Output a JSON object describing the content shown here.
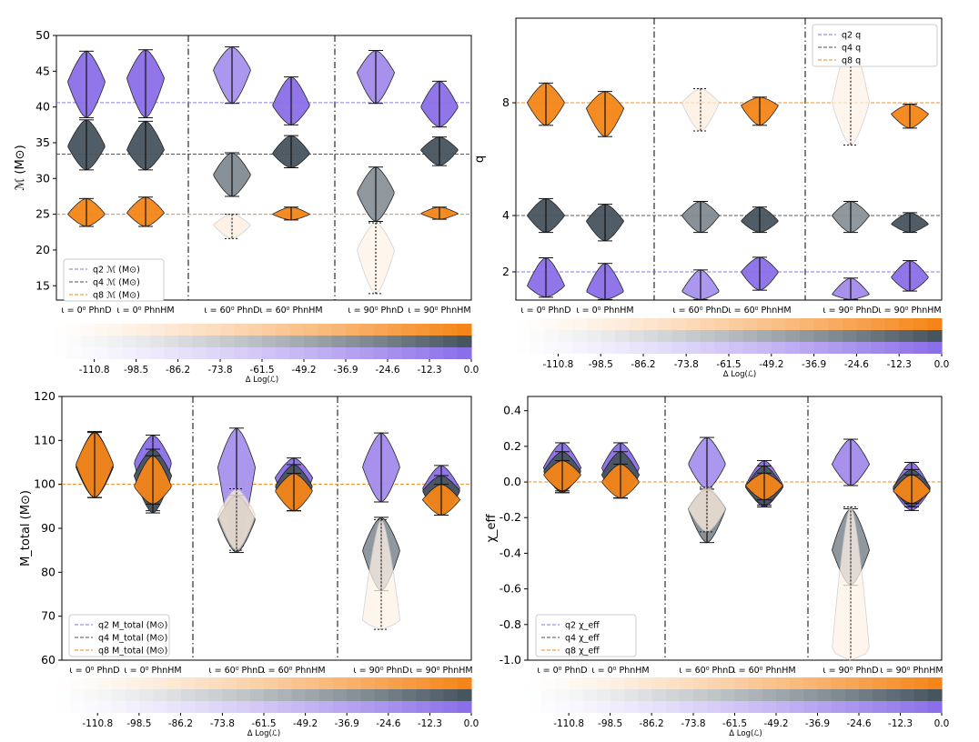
{
  "colors": {
    "q2": "#8b6fe8",
    "q4": "#47555f",
    "q8": "#f58518"
  },
  "chart_data": [
    {
      "type": "violin",
      "quantity": "chirp_mass",
      "ylabel": "ℳ (M⊙)",
      "ylim": [
        13,
        50
      ],
      "yticks": [
        15,
        20,
        25,
        30,
        35,
        40,
        45,
        50
      ],
      "ytick_labels": [
        "15",
        "20",
        "25",
        "30",
        "35",
        "40",
        "45",
        "50"
      ],
      "categories": [
        "ι = 0⁰ PhnD",
        "ι = 0⁰ PhnHM",
        "ι = 60⁰ PhnD",
        "ι = 60⁰ PhnHM",
        "ι = 90⁰ PhnD",
        "ι = 90⁰ PhnHM"
      ],
      "legend": [
        "q2 ℳ (M⊙)",
        "q4 ℳ (M⊙)",
        "q8 ℳ (M⊙)"
      ],
      "legend_position": "lower-left",
      "reference_lines": [
        40.6,
        33.4,
        25.0
      ],
      "series": [
        {
          "name": "q2",
          "delta_logL": [
            0,
            0,
            -30,
            0,
            -25,
            0
          ],
          "ranges": [
            [
              38.5,
              47.8
            ],
            [
              38.5,
              48.0
            ],
            [
              40.5,
              48.4
            ],
            [
              37.5,
              44.2
            ],
            [
              40.5,
              47.9
            ],
            [
              37.2,
              43.6
            ]
          ],
          "peaks": [
            43.5,
            44.0,
            45.2,
            40.2,
            44.8,
            40.0
          ]
        },
        {
          "name": "q4",
          "delta_logL": [
            0,
            0,
            -40,
            0,
            -45,
            0
          ],
          "ranges": [
            [
              31.2,
              38.2
            ],
            [
              31.2,
              38.0
            ],
            [
              27.5,
              33.6
            ],
            [
              31.5,
              36.0
            ],
            [
              24.0,
              31.6
            ],
            [
              31.8,
              35.8
            ]
          ],
          "peaks": [
            34.5,
            34.0,
            30.5,
            33.5,
            28.0,
            34.0
          ]
        },
        {
          "name": "q8",
          "delta_logL": [
            0,
            0,
            -105,
            0,
            -110,
            0
          ],
          "ranges": [
            [
              23.3,
              27.2
            ],
            [
              23.3,
              27.4
            ],
            [
              21.6,
              25.0
            ],
            [
              24.2,
              26.0
            ],
            [
              13.9,
              23.8
            ],
            [
              24.3,
              26.0
            ]
          ],
          "peaks": [
            25.0,
            25.2,
            23.5,
            25.0,
            20.0,
            25.1
          ]
        }
      ]
    },
    {
      "type": "violin",
      "quantity": "mass_ratio",
      "ylabel": "q",
      "ylim": [
        1,
        11
      ],
      "yticks": [
        2,
        4,
        8
      ],
      "ytick_labels": [
        "2",
        "4",
        "8"
      ],
      "categories": [
        "ι = 0⁰ PhnD",
        "ι = 0⁰ PhnHM",
        "ι = 60⁰ PhnD",
        "ι = 60⁰ PhnHM",
        "ι = 90⁰ PhnD",
        "ι = 90⁰ PhnHM"
      ],
      "legend": [
        "q2 q",
        "q4 q",
        "q8 q"
      ],
      "legend_position": "upper-right",
      "reference_lines": [
        2,
        4,
        8
      ],
      "series": [
        {
          "name": "q2",
          "delta_logL": [
            0,
            0,
            -30,
            0,
            -25,
            0
          ],
          "ranges": [
            [
              1.1,
              2.5
            ],
            [
              1.02,
              2.3
            ],
            [
              1.02,
              2.07
            ],
            [
              1.35,
              2.52
            ],
            [
              1.02,
              1.78
            ],
            [
              1.32,
              2.4
            ]
          ],
          "peaks": [
            1.5,
            1.3,
            1.3,
            2.0,
            1.2,
            1.8
          ]
        },
        {
          "name": "q4",
          "delta_logL": [
            0,
            0,
            -40,
            0,
            -45,
            0
          ],
          "ranges": [
            [
              3.4,
              4.6
            ],
            [
              3.1,
              4.4
            ],
            [
              3.4,
              4.5
            ],
            [
              3.4,
              4.3
            ],
            [
              3.4,
              4.5
            ],
            [
              3.4,
              4.1
            ]
          ],
          "peaks": [
            4.0,
            3.8,
            4.0,
            3.8,
            4.0,
            3.7
          ]
        },
        {
          "name": "q8",
          "delta_logL": [
            0,
            0,
            -105,
            0,
            -110,
            0
          ],
          "ranges": [
            [
              7.2,
              8.7
            ],
            [
              6.8,
              8.4
            ],
            [
              7.0,
              8.5
            ],
            [
              7.2,
              8.2
            ],
            [
              6.5,
              10.2
            ],
            [
              7.1,
              7.95
            ]
          ],
          "peaks": [
            8.0,
            7.8,
            8.0,
            7.9,
            8.0,
            7.6
          ]
        }
      ]
    },
    {
      "type": "violin",
      "quantity": "total_mass",
      "ylabel": "M_total (M⊙)",
      "ylim": [
        60,
        120
      ],
      "yticks": [
        60,
        70,
        80,
        90,
        100,
        110,
        120
      ],
      "ytick_labels": [
        "60",
        "70",
        "80",
        "90",
        "100",
        "110",
        "120"
      ],
      "categories": [
        "ι = 0⁰ PhnD",
        "ι = 0⁰ PhnHM",
        "ι = 60⁰ PhnD",
        "ι = 60⁰ PhnHM",
        "ι = 90⁰ PhnD",
        "ι = 90⁰ PhnHM"
      ],
      "legend": [
        "q2 M_total (M⊙)",
        "q4 M_total (M⊙)",
        "q8 M_total (M⊙)"
      ],
      "legend_position": "lower-left",
      "reference_lines": [
        100
      ],
      "series": [
        {
          "name": "q2",
          "delta_logL": [
            0,
            0,
            -30,
            0,
            -25,
            0
          ],
          "ranges": [
            [
              97.0,
              112.0
            ],
            [
              94.0,
              111.2
            ],
            [
              86.0,
              112.8
            ],
            [
              94.0,
              106.0
            ],
            [
              96.0,
              111.7
            ],
            [
              93.0,
              104.3
            ]
          ],
          "peaks": [
            104.0,
            105.0,
            104.0,
            101.5,
            104.0,
            99.0
          ]
        },
        {
          "name": "q4",
          "delta_logL": [
            0,
            0,
            -40,
            0,
            -45,
            0
          ],
          "ranges": [
            [
              97.0,
              112.0
            ],
            [
              93.5,
              108.0
            ],
            [
              84.5,
              97.5
            ],
            [
              94.0,
              104.5
            ],
            [
              75.8,
              92.5
            ],
            [
              93.0,
              102.0
            ]
          ],
          "peaks": [
            104.0,
            102.0,
            92.0,
            99.5,
            85.0,
            98.5
          ]
        },
        {
          "name": "q8",
          "delta_logL": [
            0,
            0,
            -105,
            0,
            -110,
            0
          ],
          "ranges": [
            [
              97.0,
              111.8
            ],
            [
              95.5,
              106.5
            ],
            [
              85.0,
              99.0
            ],
            [
              94.0,
              102.5
            ],
            [
              67.0,
              92.0
            ],
            [
              93.0,
              100.0
            ]
          ],
          "peaks": [
            104.5,
            99.5,
            93.0,
            98.5,
            69.0,
            96.5
          ]
        }
      ]
    },
    {
      "type": "violin",
      "quantity": "effective_spin",
      "ylabel": "χ_eff",
      "ylim": [
        -1.0,
        0.48
      ],
      "yticks": [
        -1.0,
        -0.8,
        -0.6,
        -0.4,
        -0.2,
        0.0,
        0.2,
        0.4
      ],
      "ytick_labels": [
        "-1.0",
        "-0.8",
        "-0.6",
        "-0.4",
        "-0.2",
        "0.0",
        "0.2",
        "0.4"
      ],
      "categories": [
        "ι = 0⁰ PhnD",
        "ι = 0⁰ PhnHM",
        "ι = 60⁰ PhnD",
        "ι = 60⁰ PhnHM",
        "ι = 90⁰ PhnD",
        "ι = 90⁰ PhnHM"
      ],
      "legend": [
        "q2 χ_eff",
        "q4 χ_eff",
        "q8 χ_eff"
      ],
      "legend_position": "lower-left",
      "reference_lines": [
        0.0
      ],
      "series": [
        {
          "name": "q2",
          "delta_logL": [
            0,
            0,
            -30,
            0,
            -25,
            0
          ],
          "ranges": [
            [
              -0.06,
              0.22
            ],
            [
              -0.09,
              0.22
            ],
            [
              -0.04,
              0.25
            ],
            [
              -0.14,
              0.12
            ],
            [
              -0.02,
              0.24
            ],
            [
              -0.16,
              0.11
            ]
          ],
          "peaks": [
            0.08,
            0.08,
            0.1,
            -0.02,
            0.1,
            -0.04
          ]
        },
        {
          "name": "q4",
          "delta_logL": [
            0,
            0,
            -40,
            0,
            -45,
            0
          ],
          "ranges": [
            [
              -0.06,
              0.17
            ],
            [
              -0.09,
              0.17
            ],
            [
              -0.34,
              -0.04
            ],
            [
              -0.13,
              0.09
            ],
            [
              -0.58,
              -0.15
            ],
            [
              -0.14,
              0.07
            ]
          ],
          "peaks": [
            0.06,
            0.04,
            -0.15,
            -0.03,
            -0.38,
            -0.03
          ]
        },
        {
          "name": "q8",
          "delta_logL": [
            0,
            0,
            -105,
            0,
            -110,
            0
          ],
          "ranges": [
            [
              -0.05,
              0.12
            ],
            [
              -0.09,
              0.1
            ],
            [
              -0.28,
              -0.03
            ],
            [
              -0.1,
              0.05
            ],
            [
              -1.0,
              -0.14
            ],
            [
              -0.12,
              0.04
            ]
          ],
          "peaks": [
            0.04,
            0.0,
            -0.15,
            -0.02,
            -0.95,
            -0.05
          ]
        }
      ]
    }
  ],
  "colorbar": {
    "label": "Δ Log(ℒ)",
    "ticks": [
      "-110.8",
      "-98.5",
      "-86.2",
      "-73.8",
      "-61.5",
      "-49.2",
      "-36.9",
      "-24.6",
      "-12.3",
      "0.0"
    ],
    "range": [
      -123,
      0
    ]
  }
}
